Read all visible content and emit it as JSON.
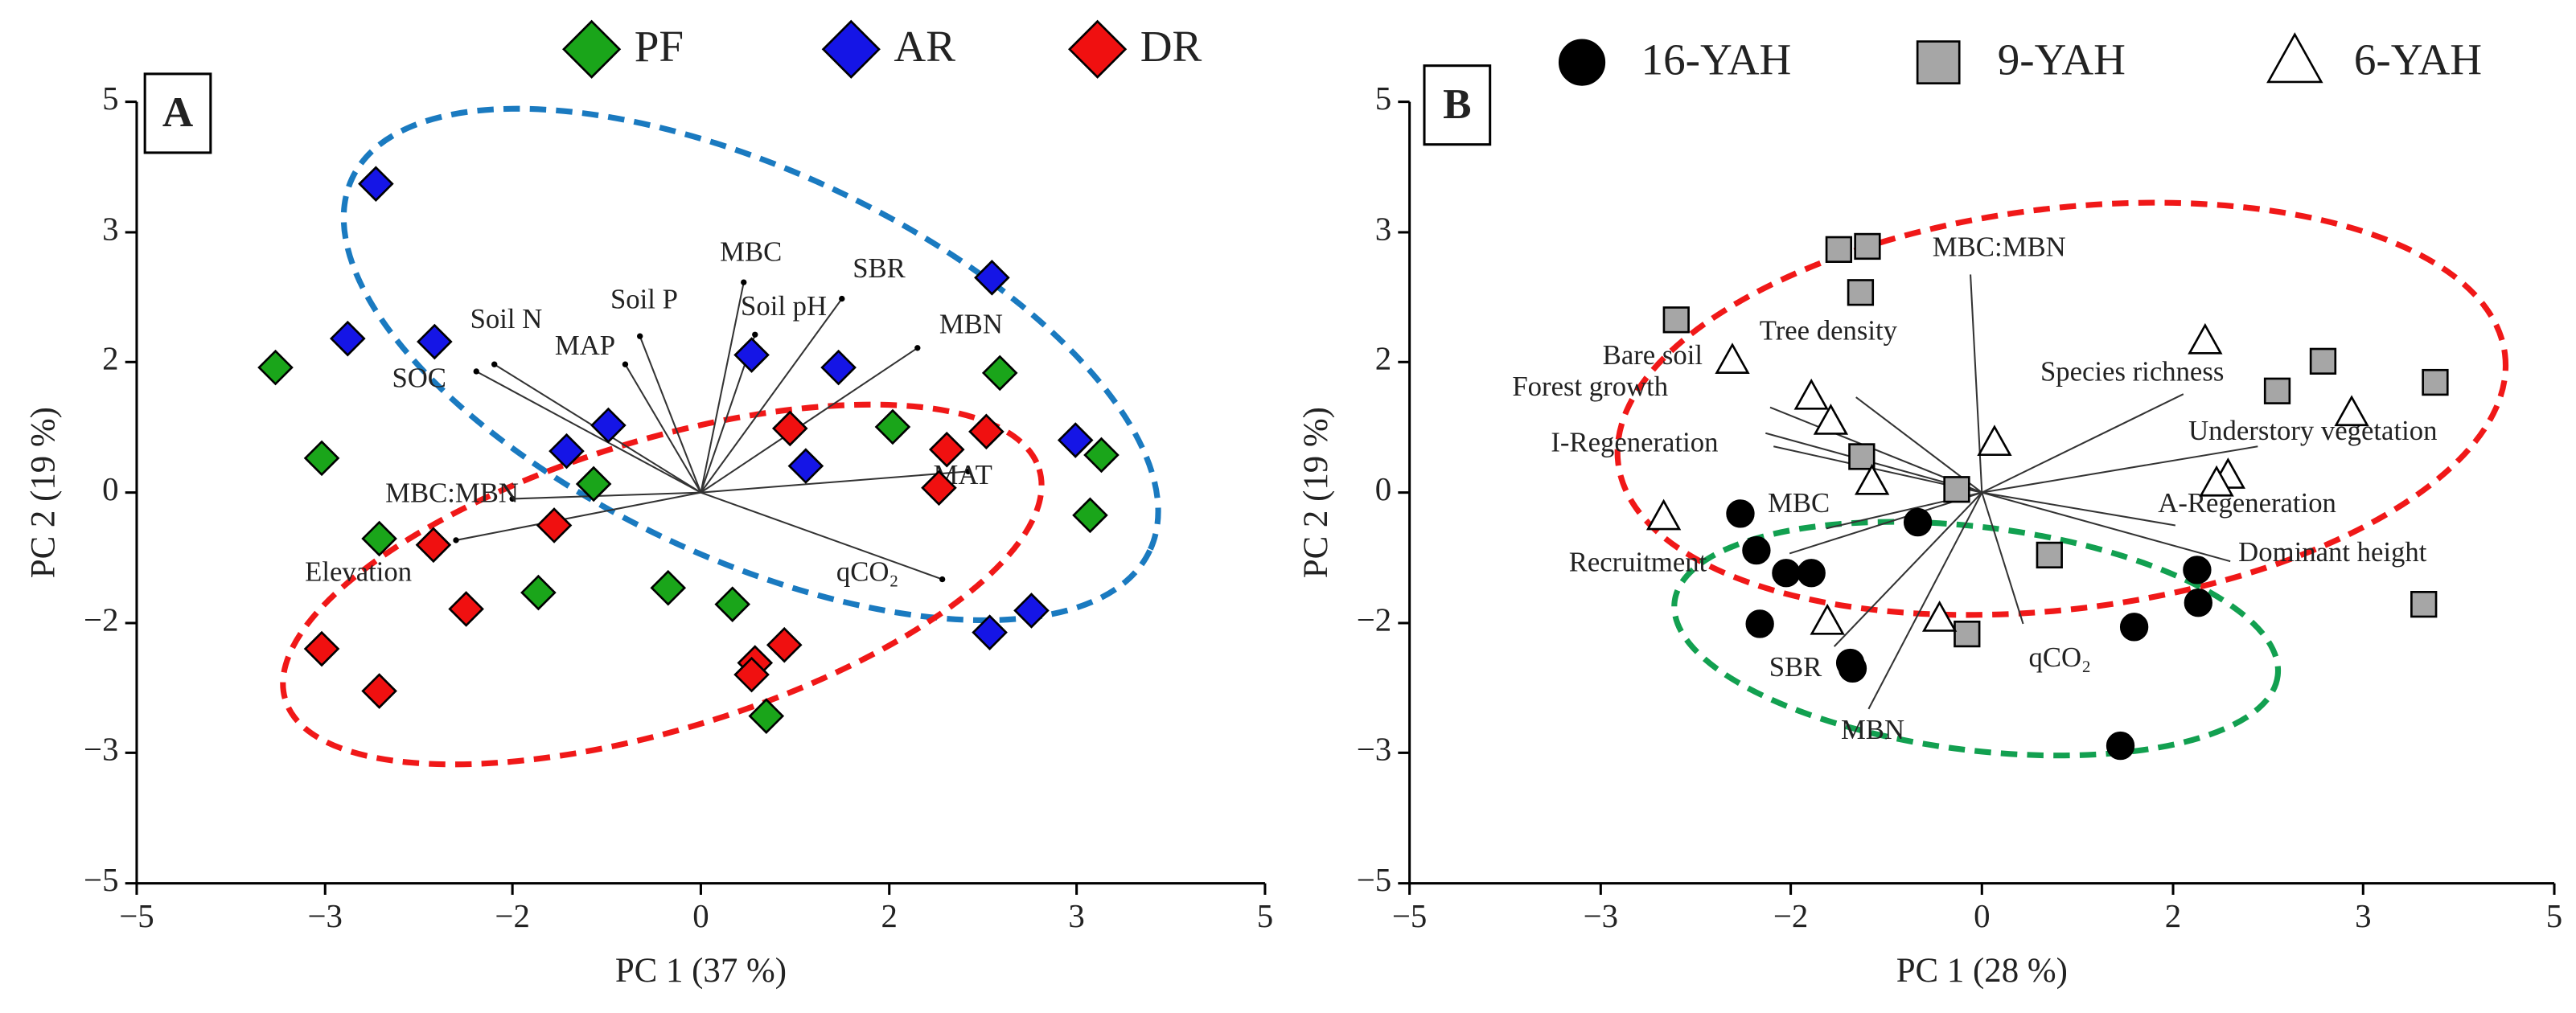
{
  "chart_data": [
    {
      "type": "scatter",
      "panel": "A",
      "xlabel": "PC 1 (37 %)",
      "ylabel": "PC 2 (19 %)",
      "xlim": [
        -5,
        5
      ],
      "ylim": [
        -5,
        5
      ],
      "xticks": [
        {
          "value": -5,
          "label": "−5"
        },
        {
          "value": -3.33,
          "label": "−3"
        },
        {
          "value": -1.67,
          "label": "−2"
        },
        0,
        {
          "value": 1.67,
          "label": "2"
        },
        {
          "value": 3.33,
          "label": "3"
        },
        5
      ],
      "yticks": [
        {
          "value": -5,
          "label": "−5"
        },
        {
          "value": -3.33,
          "label": "−3"
        },
        {
          "value": -1.67,
          "label": "−2"
        },
        0,
        {
          "value": 1.67,
          "label": "2"
        },
        {
          "value": 3.33,
          "label": "3"
        },
        5
      ],
      "series": [
        {
          "name": "PF",
          "color": "#1aa51a",
          "marker": "diamond",
          "x": [
            -3.77,
            -3.36,
            -2.85,
            -0.95,
            -1.44,
            -0.29,
            0.28,
            0.58,
            1.7,
            2.65,
            3.55,
            3.45
          ],
          "y": [
            1.6,
            0.44,
            -0.59,
            0.11,
            -1.28,
            -1.22,
            -1.43,
            -2.86,
            0.84,
            1.53,
            0.48,
            -0.29
          ]
        },
        {
          "name": "AR",
          "color": "#1515e6",
          "marker": "diamond",
          "x": [
            -2.88,
            -3.13,
            -2.36,
            -0.82,
            -1.19,
            0.45,
            1.22,
            0.93,
            2.58,
            3.32,
            2.93,
            2.56
          ],
          "y": [
            3.95,
            1.97,
            1.93,
            0.86,
            0.53,
            1.76,
            1.6,
            0.34,
            2.75,
            0.67,
            -1.51,
            -1.79
          ]
        },
        {
          "name": "DR",
          "color": "#f01010",
          "marker": "diamond",
          "x": [
            -2.37,
            -2.08,
            -3.36,
            -2.85,
            -1.3,
            0.79,
            0.74,
            0.48,
            0.45,
            2.18,
            2.53,
            2.11
          ],
          "y": [
            -0.67,
            -1.49,
            -2.0,
            -2.54,
            -0.42,
            0.82,
            -1.95,
            -2.18,
            -2.33,
            0.55,
            0.78,
            0.06
          ]
        }
      ],
      "vectors": [
        {
          "name": "SOC",
          "x": -1.99,
          "y": 1.55
        },
        {
          "name": "Soil N",
          "x": -1.83,
          "y": 1.64
        },
        {
          "name": "MAP",
          "x": -0.67,
          "y": 1.64
        },
        {
          "name": "Soil P",
          "x": -0.54,
          "y": 2.0
        },
        {
          "name": "MBC",
          "x": 0.38,
          "y": 2.69
        },
        {
          "name": "Soil pH",
          "x": 0.48,
          "y": 2.02
        },
        {
          "name": "SBR",
          "x": 1.25,
          "y": 2.48
        },
        {
          "name": "MBN",
          "x": 1.92,
          "y": 1.85
        },
        {
          "name": "MBC:MBN",
          "x": -1.67,
          "y": -0.08
        },
        {
          "name": "Elevation",
          "x": -2.17,
          "y": -0.61
        },
        {
          "name": "MAT",
          "x": 2.37,
          "y": 0.27
        },
        {
          "name": "qCO₂",
          "x": 2.14,
          "y": -1.11
        }
      ]
    },
    {
      "type": "scatter",
      "panel": "B",
      "xlabel": "PC 1 (28 %)",
      "ylabel": "PC 2 (19 %)",
      "xlim": [
        -5,
        5
      ],
      "ylim": [
        -5,
        5
      ],
      "xticks": [
        {
          "value": -5,
          "label": "−5"
        },
        {
          "value": -3.33,
          "label": "−3"
        },
        {
          "value": -1.67,
          "label": "−2"
        },
        0,
        {
          "value": 1.67,
          "label": "2"
        },
        {
          "value": 3.33,
          "label": "3"
        },
        5
      ],
      "yticks": [
        {
          "value": -5,
          "label": "−5"
        },
        {
          "value": -3.33,
          "label": "−3"
        },
        {
          "value": -1.67,
          "label": "−2"
        },
        0,
        {
          "value": 1.67,
          "label": "2"
        },
        {
          "value": 3.33,
          "label": "3"
        },
        5
      ],
      "series": [
        {
          "name": "16-YAH",
          "color": "#000000",
          "marker": "circle",
          "x": [
            -2.11,
            -1.97,
            -1.71,
            -1.49,
            -1.94,
            -1.15,
            -1.13,
            -0.56,
            1.33,
            1.88,
            1.89,
            1.21
          ],
          "y": [
            -0.27,
            -0.74,
            -1.03,
            -1.03,
            -1.68,
            -2.18,
            -2.25,
            -0.38,
            -1.72,
            -0.99,
            -1.41,
            -3.24
          ]
        },
        {
          "name": "9-YAH",
          "color": "#a6a6a6",
          "marker": "square",
          "x": [
            -1.25,
            -1.0,
            -2.67,
            -1.06,
            -1.05,
            -0.22,
            0.59,
            -0.13,
            2.98,
            2.58,
            3.96,
            3.86
          ],
          "y": [
            3.11,
            3.15,
            2.21,
            2.56,
            0.46,
            0.04,
            -0.8,
            -1.81,
            1.68,
            1.3,
            1.41,
            -1.43
          ]
        },
        {
          "name": "6-YAH",
          "color": "#ffffff",
          "marker": "triangle",
          "x": [
            -2.18,
            -2.78,
            -1.49,
            -1.32,
            -0.96,
            0.11,
            1.95,
            3.23,
            2.15,
            2.05,
            -1.35,
            -0.37
          ],
          "y": [
            1.68,
            -0.32,
            1.22,
            0.9,
            0.13,
            0.63,
            1.93,
            1.01,
            0.21,
            0.11,
            -1.66,
            -1.62
          ]
        }
      ],
      "vectors": [
        {
          "name": "MBC:MBN",
          "x": -0.1,
          "y": 2.79
        },
        {
          "name": "Tree density",
          "x": -1.1,
          "y": 1.22
        },
        {
          "name": "Bare soil",
          "x": -1.85,
          "y": 1.09
        },
        {
          "name": "Forest growth",
          "x": -1.89,
          "y": 0.76
        },
        {
          "name": "I-Regeneration",
          "x": -1.82,
          "y": 0.59
        },
        {
          "name": "MBC",
          "x": -1.36,
          "y": -0.46
        },
        {
          "name": "Recruitment",
          "x": -1.68,
          "y": -0.78
        },
        {
          "name": "SBR",
          "x": -1.29,
          "y": -1.97
        },
        {
          "name": "MBN",
          "x": -0.99,
          "y": -2.77
        },
        {
          "name": "qCO₂",
          "x": 0.36,
          "y": -1.68
        },
        {
          "name": "A-Regeneration",
          "x": 1.69,
          "y": -0.42
        },
        {
          "name": "Dominant height",
          "x": 2.17,
          "y": -0.88
        },
        {
          "name": "Understory vegetation",
          "x": 2.41,
          "y": 0.59
        },
        {
          "name": "Species richness",
          "x": 1.76,
          "y": 1.26
        }
      ]
    }
  ]
}
